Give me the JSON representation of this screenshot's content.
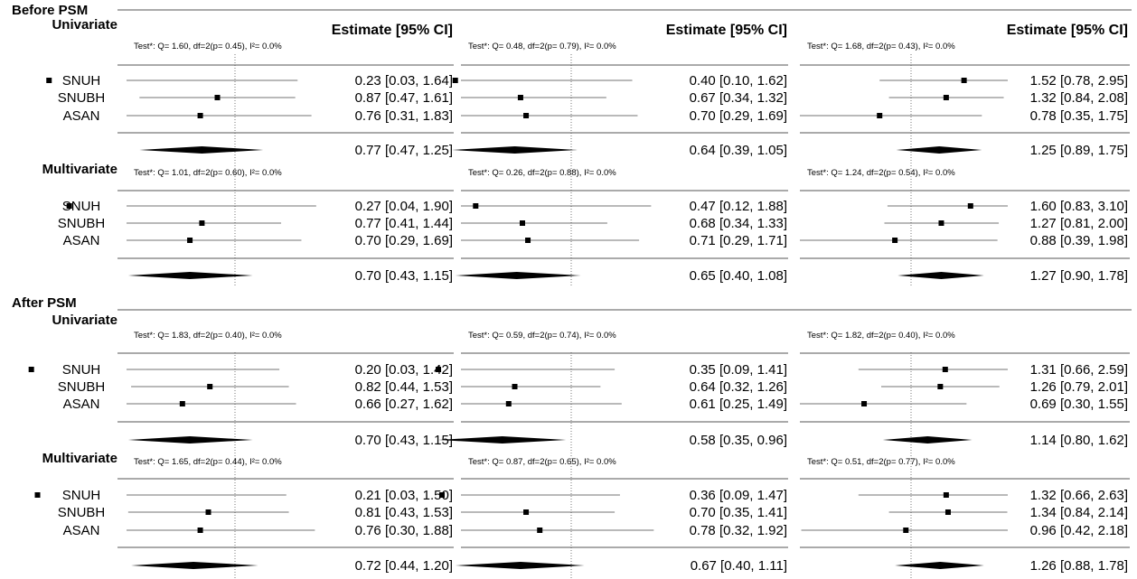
{
  "column_header": "Estimate [95% CI]",
  "sections": [
    {
      "label": "Before PSM",
      "models": [
        {
          "label": "Univariate",
          "tests": [
            "Test*: Q= 1.60, df=2(p= 0.45), I²= 0.0%",
            "Test*: Q= 0.48, df=2(p= 0.79), I²= 0.0%",
            "Test*: Q= 1.68, df=2(p= 0.43), I²= 0.0%"
          ],
          "sites": [
            "SNUH",
            "SNUBH",
            "ASAN"
          ],
          "estimates": [
            [
              "0.23 [0.03, 1.64]",
              "0.87 [0.47, 1.61]",
              "0.76 [0.31, 1.83]",
              "0.77 [0.47, 1.25]"
            ],
            [
              "0.40 [0.10, 1.62]",
              "0.67 [0.34, 1.32]",
              "0.70 [0.29, 1.69]",
              "0.64 [0.39, 1.05]"
            ],
            [
              "1.52 [0.78, 2.95]",
              "1.32 [0.84, 2.08]",
              "0.78 [0.35, 1.75]",
              "1.25 [0.89, 1.75]"
            ]
          ]
        },
        {
          "label": "Multivariate",
          "tests": [
            "Test*: Q= 1.01, df=2(p= 0.60), I²= 0.0%",
            "Test*: Q= 0.26, df=2(p= 0.88), I²= 0.0%",
            "Test*: Q= 1.24, df=2(p= 0.54), I²= 0.0%"
          ],
          "sites": [
            "SNUH",
            "SNUBH",
            "ASAN"
          ],
          "estimates": [
            [
              "0.27 [0.04, 1.90]",
              "0.77 [0.41, 1.44]",
              "0.70 [0.29, 1.69]",
              "0.70 [0.43, 1.15]"
            ],
            [
              "0.47 [0.12, 1.88]",
              "0.68 [0.34, 1.33]",
              "0.71 [0.29, 1.71]",
              "0.65 [0.40, 1.08]"
            ],
            [
              "1.60 [0.83, 3.10]",
              "1.27 [0.81, 2.00]",
              "0.88 [0.39, 1.98]",
              "1.27 [0.90, 1.78]"
            ]
          ]
        }
      ]
    },
    {
      "label": "After PSM",
      "models": [
        {
          "label": "Univariate",
          "tests": [
            "Test*: Q= 1.83, df=2(p= 0.40), I²= 0.0%",
            "Test*: Q= 0.59, df=2(p= 0.74), I²= 0.0%",
            "Test*: Q= 1.82, df=2(p= 0.40), I²= 0.0%"
          ],
          "sites": [
            "SNUH",
            "SNUBH",
            "ASAN"
          ],
          "estimates": [
            [
              "0.20 [0.03, 1.42]",
              "0.82 [0.44, 1.53]",
              "0.66 [0.27, 1.62]",
              "0.70 [0.43, 1.15]"
            ],
            [
              "0.35 [0.09, 1.41]",
              "0.64 [0.32, 1.26]",
              "0.61 [0.25, 1.49]",
              "0.58 [0.35, 0.96]"
            ],
            [
              "1.31 [0.66, 2.59]",
              "1.26 [0.79, 2.01]",
              "0.69 [0.30, 1.55]",
              "1.14 [0.80, 1.62]"
            ]
          ]
        },
        {
          "label": "Multivariate",
          "tests": [
            "Test*: Q= 1.65, df=2(p= 0.44), I²= 0.0%",
            "Test*: Q= 0.87, df=2(p= 0.65), I²= 0.0%",
            "Test*: Q= 0.51, df=2(p= 0.77), I²= 0.0%"
          ],
          "sites": [
            "SNUH",
            "SNUBH",
            "ASAN"
          ],
          "estimates": [
            [
              "0.21 [0.03, 1.50]",
              "0.81 [0.43, 1.53]",
              "0.76 [0.30, 1.88]",
              "0.72 [0.44, 1.20]"
            ],
            [
              "0.36 [0.09, 1.47]",
              "0.70 [0.35, 1.41]",
              "0.78 [0.32, 1.92]",
              "0.67 [0.40, 1.11]"
            ],
            [
              "1.32 [0.66, 2.63]",
              "1.34 [0.84, 2.14]",
              "0.96 [0.42, 2.18]",
              "1.26 [0.88, 1.78]"
            ]
          ]
        }
      ]
    }
  ],
  "chart_data": {
    "type": "forest",
    "reference_line": 1,
    "x_scale": "log",
    "panels": [
      {
        "rows": [
          {
            "group": "Before PSM",
            "model": "Univariate",
            "site": "SNUH",
            "est": 0.23,
            "lo": 0.03,
            "hi": 1.64
          },
          {
            "group": "Before PSM",
            "model": "Univariate",
            "site": "SNUBH",
            "est": 0.87,
            "lo": 0.47,
            "hi": 1.61
          },
          {
            "group": "Before PSM",
            "model": "Univariate",
            "site": "ASAN",
            "est": 0.76,
            "lo": 0.31,
            "hi": 1.83
          },
          {
            "group": "Before PSM",
            "model": "Univariate",
            "site": "pooled",
            "est": 0.77,
            "lo": 0.47,
            "hi": 1.25
          },
          {
            "group": "Before PSM",
            "model": "Multivariate",
            "site": "SNUH",
            "est": 0.27,
            "lo": 0.04,
            "hi": 1.9
          },
          {
            "group": "Before PSM",
            "model": "Multivariate",
            "site": "SNUBH",
            "est": 0.77,
            "lo": 0.41,
            "hi": 1.44
          },
          {
            "group": "Before PSM",
            "model": "Multivariate",
            "site": "ASAN",
            "est": 0.7,
            "lo": 0.29,
            "hi": 1.69
          },
          {
            "group": "Before PSM",
            "model": "Multivariate",
            "site": "pooled",
            "est": 0.7,
            "lo": 0.43,
            "hi": 1.15
          },
          {
            "group": "After PSM",
            "model": "Univariate",
            "site": "SNUH",
            "est": 0.2,
            "lo": 0.03,
            "hi": 1.42
          },
          {
            "group": "After PSM",
            "model": "Univariate",
            "site": "SNUBH",
            "est": 0.82,
            "lo": 0.44,
            "hi": 1.53
          },
          {
            "group": "After PSM",
            "model": "Univariate",
            "site": "ASAN",
            "est": 0.66,
            "lo": 0.27,
            "hi": 1.62
          },
          {
            "group": "After PSM",
            "model": "Univariate",
            "site": "pooled",
            "est": 0.7,
            "lo": 0.43,
            "hi": 1.15
          },
          {
            "group": "After PSM",
            "model": "Multivariate",
            "site": "SNUH",
            "est": 0.21,
            "lo": 0.03,
            "hi": 1.5
          },
          {
            "group": "After PSM",
            "model": "Multivariate",
            "site": "SNUBH",
            "est": 0.81,
            "lo": 0.43,
            "hi": 1.53
          },
          {
            "group": "After PSM",
            "model": "Multivariate",
            "site": "ASAN",
            "est": 0.76,
            "lo": 0.3,
            "hi": 1.88
          },
          {
            "group": "After PSM",
            "model": "Multivariate",
            "site": "pooled",
            "est": 0.72,
            "lo": 0.44,
            "hi": 1.2
          }
        ]
      },
      {
        "rows": [
          {
            "group": "Before PSM",
            "model": "Univariate",
            "site": "SNUH",
            "est": 0.4,
            "lo": 0.1,
            "hi": 1.62
          },
          {
            "group": "Before PSM",
            "model": "Univariate",
            "site": "SNUBH",
            "est": 0.67,
            "lo": 0.34,
            "hi": 1.32
          },
          {
            "group": "Before PSM",
            "model": "Univariate",
            "site": "ASAN",
            "est": 0.7,
            "lo": 0.29,
            "hi": 1.69
          },
          {
            "group": "Before PSM",
            "model": "Univariate",
            "site": "pooled",
            "est": 0.64,
            "lo": 0.39,
            "hi": 1.05
          },
          {
            "group": "Before PSM",
            "model": "Multivariate",
            "site": "SNUH",
            "est": 0.47,
            "lo": 0.12,
            "hi": 1.88
          },
          {
            "group": "Before PSM",
            "model": "Multivariate",
            "site": "SNUBH",
            "est": 0.68,
            "lo": 0.34,
            "hi": 1.33
          },
          {
            "group": "Before PSM",
            "model": "Multivariate",
            "site": "ASAN",
            "est": 0.71,
            "lo": 0.29,
            "hi": 1.71
          },
          {
            "group": "Before PSM",
            "model": "Multivariate",
            "site": "pooled",
            "est": 0.65,
            "lo": 0.4,
            "hi": 1.08
          },
          {
            "group": "After PSM",
            "model": "Univariate",
            "site": "SNUH",
            "est": 0.35,
            "lo": 0.09,
            "hi": 1.41
          },
          {
            "group": "After PSM",
            "model": "Univariate",
            "site": "SNUBH",
            "est": 0.64,
            "lo": 0.32,
            "hi": 1.26
          },
          {
            "group": "After PSM",
            "model": "Univariate",
            "site": "ASAN",
            "est": 0.61,
            "lo": 0.25,
            "hi": 1.49
          },
          {
            "group": "After PSM",
            "model": "Univariate",
            "site": "pooled",
            "est": 0.58,
            "lo": 0.35,
            "hi": 0.96
          },
          {
            "group": "After PSM",
            "model": "Multivariate",
            "site": "SNUH",
            "est": 0.36,
            "lo": 0.09,
            "hi": 1.47
          },
          {
            "group": "After PSM",
            "model": "Multivariate",
            "site": "SNUBH",
            "est": 0.7,
            "lo": 0.35,
            "hi": 1.41
          },
          {
            "group": "After PSM",
            "model": "Multivariate",
            "site": "ASAN",
            "est": 0.78,
            "lo": 0.32,
            "hi": 1.92
          },
          {
            "group": "After PSM",
            "model": "Multivariate",
            "site": "pooled",
            "est": 0.67,
            "lo": 0.4,
            "hi": 1.11
          }
        ]
      },
      {
        "rows": [
          {
            "group": "Before PSM",
            "model": "Univariate",
            "site": "SNUH",
            "est": 1.52,
            "lo": 0.78,
            "hi": 2.95
          },
          {
            "group": "Before PSM",
            "model": "Univariate",
            "site": "SNUBH",
            "est": 1.32,
            "lo": 0.84,
            "hi": 2.08
          },
          {
            "group": "Before PSM",
            "model": "Univariate",
            "site": "ASAN",
            "est": 0.78,
            "lo": 0.35,
            "hi": 1.75
          },
          {
            "group": "Before PSM",
            "model": "Univariate",
            "site": "pooled",
            "est": 1.25,
            "lo": 0.89,
            "hi": 1.75
          },
          {
            "group": "Before PSM",
            "model": "Multivariate",
            "site": "SNUH",
            "est": 1.6,
            "lo": 0.83,
            "hi": 3.1
          },
          {
            "group": "Before PSM",
            "model": "Multivariate",
            "site": "SNUBH",
            "est": 1.27,
            "lo": 0.81,
            "hi": 2.0
          },
          {
            "group": "Before PSM",
            "model": "Multivariate",
            "site": "ASAN",
            "est": 0.88,
            "lo": 0.39,
            "hi": 1.98
          },
          {
            "group": "Before PSM",
            "model": "Multivariate",
            "site": "pooled",
            "est": 1.27,
            "lo": 0.9,
            "hi": 1.78
          },
          {
            "group": "After PSM",
            "model": "Univariate",
            "site": "SNUH",
            "est": 1.31,
            "lo": 0.66,
            "hi": 2.59
          },
          {
            "group": "After PSM",
            "model": "Univariate",
            "site": "SNUBH",
            "est": 1.26,
            "lo": 0.79,
            "hi": 2.01
          },
          {
            "group": "After PSM",
            "model": "Univariate",
            "site": "ASAN",
            "est": 0.69,
            "lo": 0.3,
            "hi": 1.55
          },
          {
            "group": "After PSM",
            "model": "Univariate",
            "site": "pooled",
            "est": 1.14,
            "lo": 0.8,
            "hi": 1.62
          },
          {
            "group": "After PSM",
            "model": "Multivariate",
            "site": "SNUH",
            "est": 1.32,
            "lo": 0.66,
            "hi": 2.63
          },
          {
            "group": "After PSM",
            "model": "Multivariate",
            "site": "SNUBH",
            "est": 1.34,
            "lo": 0.84,
            "hi": 2.14
          },
          {
            "group": "After PSM",
            "model": "Multivariate",
            "site": "ASAN",
            "est": 0.96,
            "lo": 0.42,
            "hi": 2.18
          },
          {
            "group": "After PSM",
            "model": "Multivariate",
            "site": "pooled",
            "est": 1.26,
            "lo": 0.88,
            "hi": 1.78
          }
        ]
      }
    ]
  }
}
